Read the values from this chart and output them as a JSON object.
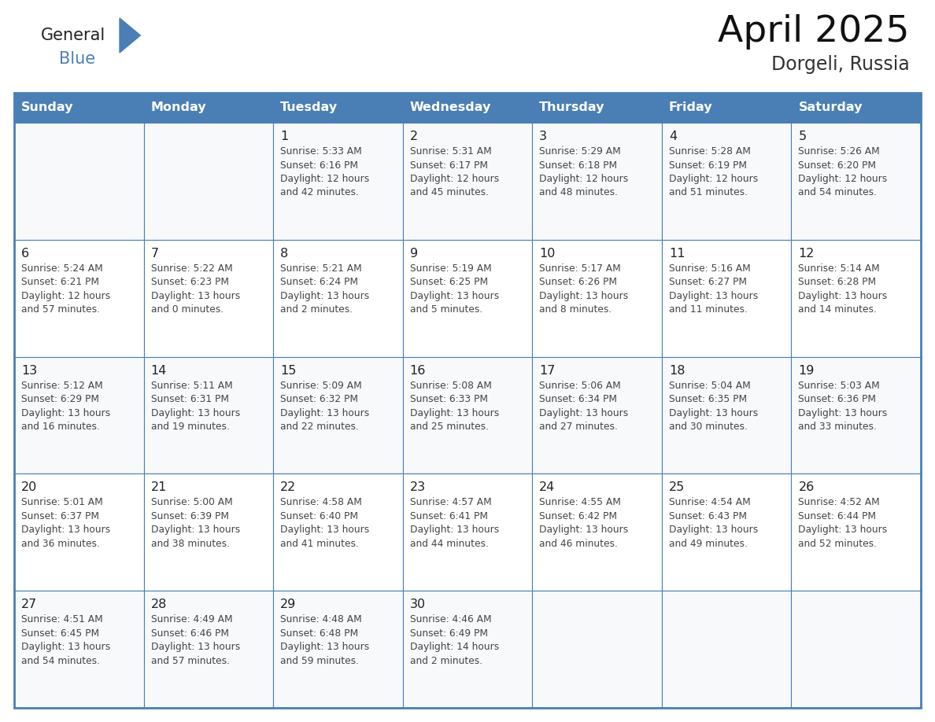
{
  "title": "April 2025",
  "subtitle": "Dorgeli, Russia",
  "header_bg_color": "#4a7fb5",
  "header_text_color": "#ffffff",
  "cell_bg_even": "#ffffff",
  "cell_bg_odd": "#f5f7fa",
  "border_color": "#4a7fb5",
  "text_color": "#333333",
  "day_num_color": "#222222",
  "info_text_color": "#444444",
  "days_of_week": [
    "Sunday",
    "Monday",
    "Tuesday",
    "Wednesday",
    "Thursday",
    "Friday",
    "Saturday"
  ],
  "logo_general_color": "#222222",
  "logo_blue_color": "#4a7fb5",
  "logo_triangle_color": "#4a7fb5",
  "title_color": "#111111",
  "subtitle_color": "#333333",
  "calendar_data": [
    [
      {
        "day": "",
        "info": ""
      },
      {
        "day": "",
        "info": ""
      },
      {
        "day": "1",
        "info": "Sunrise: 5:33 AM\nSunset: 6:16 PM\nDaylight: 12 hours\nand 42 minutes."
      },
      {
        "day": "2",
        "info": "Sunrise: 5:31 AM\nSunset: 6:17 PM\nDaylight: 12 hours\nand 45 minutes."
      },
      {
        "day": "3",
        "info": "Sunrise: 5:29 AM\nSunset: 6:18 PM\nDaylight: 12 hours\nand 48 minutes."
      },
      {
        "day": "4",
        "info": "Sunrise: 5:28 AM\nSunset: 6:19 PM\nDaylight: 12 hours\nand 51 minutes."
      },
      {
        "day": "5",
        "info": "Sunrise: 5:26 AM\nSunset: 6:20 PM\nDaylight: 12 hours\nand 54 minutes."
      }
    ],
    [
      {
        "day": "6",
        "info": "Sunrise: 5:24 AM\nSunset: 6:21 PM\nDaylight: 12 hours\nand 57 minutes."
      },
      {
        "day": "7",
        "info": "Sunrise: 5:22 AM\nSunset: 6:23 PM\nDaylight: 13 hours\nand 0 minutes."
      },
      {
        "day": "8",
        "info": "Sunrise: 5:21 AM\nSunset: 6:24 PM\nDaylight: 13 hours\nand 2 minutes."
      },
      {
        "day": "9",
        "info": "Sunrise: 5:19 AM\nSunset: 6:25 PM\nDaylight: 13 hours\nand 5 minutes."
      },
      {
        "day": "10",
        "info": "Sunrise: 5:17 AM\nSunset: 6:26 PM\nDaylight: 13 hours\nand 8 minutes."
      },
      {
        "day": "11",
        "info": "Sunrise: 5:16 AM\nSunset: 6:27 PM\nDaylight: 13 hours\nand 11 minutes."
      },
      {
        "day": "12",
        "info": "Sunrise: 5:14 AM\nSunset: 6:28 PM\nDaylight: 13 hours\nand 14 minutes."
      }
    ],
    [
      {
        "day": "13",
        "info": "Sunrise: 5:12 AM\nSunset: 6:29 PM\nDaylight: 13 hours\nand 16 minutes."
      },
      {
        "day": "14",
        "info": "Sunrise: 5:11 AM\nSunset: 6:31 PM\nDaylight: 13 hours\nand 19 minutes."
      },
      {
        "day": "15",
        "info": "Sunrise: 5:09 AM\nSunset: 6:32 PM\nDaylight: 13 hours\nand 22 minutes."
      },
      {
        "day": "16",
        "info": "Sunrise: 5:08 AM\nSunset: 6:33 PM\nDaylight: 13 hours\nand 25 minutes."
      },
      {
        "day": "17",
        "info": "Sunrise: 5:06 AM\nSunset: 6:34 PM\nDaylight: 13 hours\nand 27 minutes."
      },
      {
        "day": "18",
        "info": "Sunrise: 5:04 AM\nSunset: 6:35 PM\nDaylight: 13 hours\nand 30 minutes."
      },
      {
        "day": "19",
        "info": "Sunrise: 5:03 AM\nSunset: 6:36 PM\nDaylight: 13 hours\nand 33 minutes."
      }
    ],
    [
      {
        "day": "20",
        "info": "Sunrise: 5:01 AM\nSunset: 6:37 PM\nDaylight: 13 hours\nand 36 minutes."
      },
      {
        "day": "21",
        "info": "Sunrise: 5:00 AM\nSunset: 6:39 PM\nDaylight: 13 hours\nand 38 minutes."
      },
      {
        "day": "22",
        "info": "Sunrise: 4:58 AM\nSunset: 6:40 PM\nDaylight: 13 hours\nand 41 minutes."
      },
      {
        "day": "23",
        "info": "Sunrise: 4:57 AM\nSunset: 6:41 PM\nDaylight: 13 hours\nand 44 minutes."
      },
      {
        "day": "24",
        "info": "Sunrise: 4:55 AM\nSunset: 6:42 PM\nDaylight: 13 hours\nand 46 minutes."
      },
      {
        "day": "25",
        "info": "Sunrise: 4:54 AM\nSunset: 6:43 PM\nDaylight: 13 hours\nand 49 minutes."
      },
      {
        "day": "26",
        "info": "Sunrise: 4:52 AM\nSunset: 6:44 PM\nDaylight: 13 hours\nand 52 minutes."
      }
    ],
    [
      {
        "day": "27",
        "info": "Sunrise: 4:51 AM\nSunset: 6:45 PM\nDaylight: 13 hours\nand 54 minutes."
      },
      {
        "day": "28",
        "info": "Sunrise: 4:49 AM\nSunset: 6:46 PM\nDaylight: 13 hours\nand 57 minutes."
      },
      {
        "day": "29",
        "info": "Sunrise: 4:48 AM\nSunset: 6:48 PM\nDaylight: 13 hours\nand 59 minutes."
      },
      {
        "day": "30",
        "info": "Sunrise: 4:46 AM\nSunset: 6:49 PM\nDaylight: 14 hours\nand 2 minutes."
      },
      {
        "day": "",
        "info": ""
      },
      {
        "day": "",
        "info": ""
      },
      {
        "day": "",
        "info": ""
      }
    ]
  ]
}
